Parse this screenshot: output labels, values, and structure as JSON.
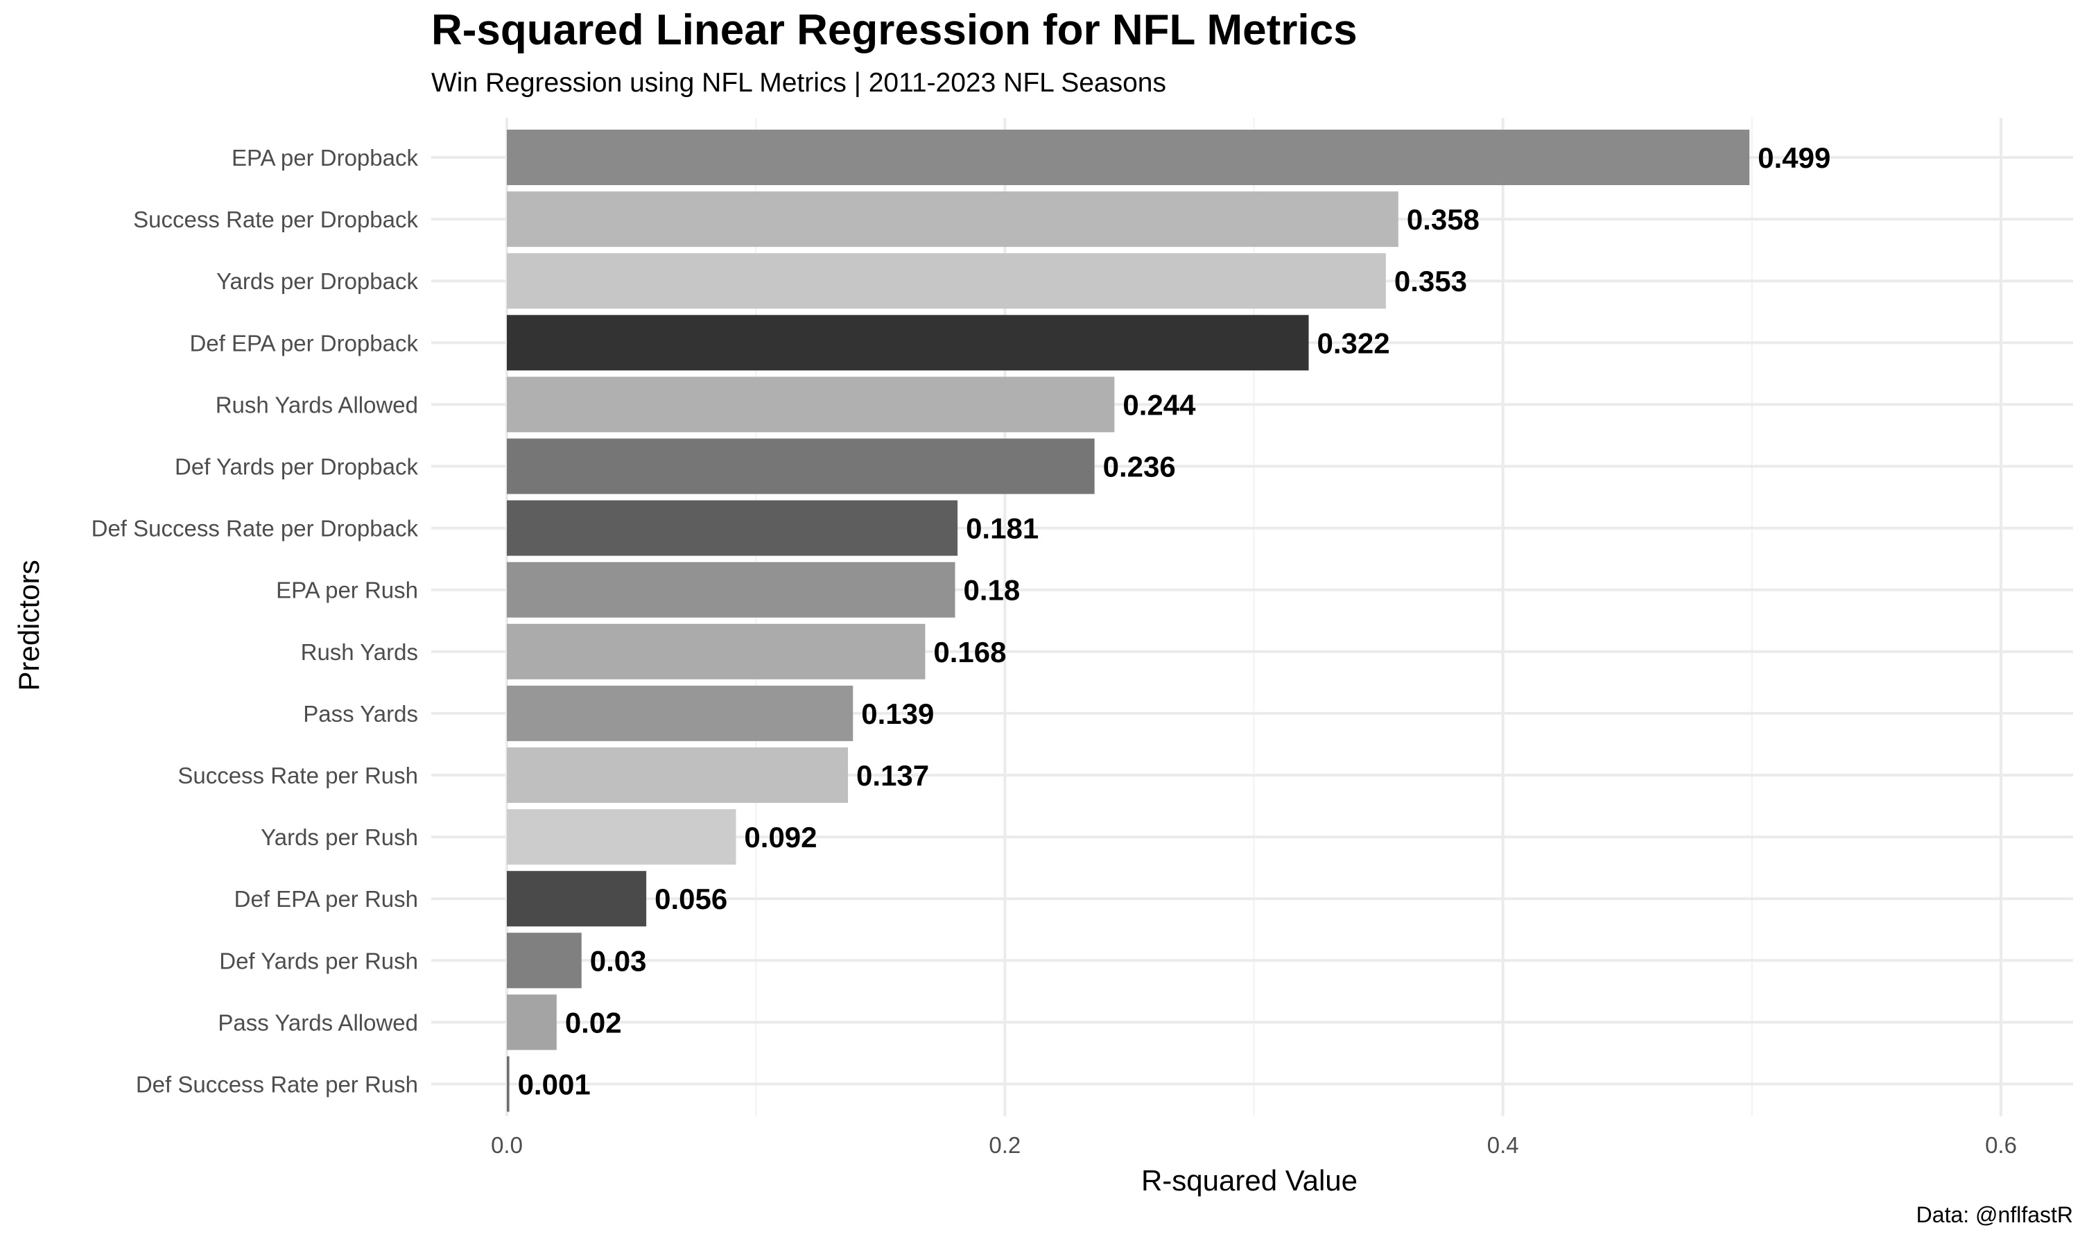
{
  "chart_data": {
    "type": "bar",
    "orientation": "horizontal",
    "title": "R-squared Linear Regression for NFL Metrics",
    "subtitle": "Win Regression using NFL Metrics | 2011-2023 NFL Seasons",
    "caption": "Data: @nflfastR",
    "xlabel": "R-squared Value",
    "ylabel": "Predictors",
    "xlim": [
      0,
      0.6
    ],
    "x_ticks": [
      "0.0",
      "0.2",
      "0.4",
      "0.6"
    ],
    "grid": true,
    "legend": "none",
    "categories": [
      "EPA per Dropback",
      "Success Rate per Dropback",
      "Yards per Dropback",
      "Def EPA per Dropback",
      "Rush Yards Allowed",
      "Def Yards per Dropback",
      "Def Success Rate per Dropback",
      "EPA per Rush",
      "Rush Yards",
      "Pass Yards",
      "Success Rate per Rush",
      "Yards per Rush",
      "Def EPA per Rush",
      "Def Yards per Rush",
      "Pass Yards Allowed",
      "Def Success Rate per Rush"
    ],
    "values": [
      0.499,
      0.358,
      0.353,
      0.322,
      0.244,
      0.236,
      0.181,
      0.18,
      0.168,
      0.139,
      0.137,
      0.092,
      0.056,
      0.03,
      0.02,
      0.001
    ],
    "value_labels": [
      "0.499",
      "0.358",
      "0.353",
      "0.322",
      "0.244",
      "0.236",
      "0.181",
      "0.18",
      "0.168",
      "0.139",
      "0.137",
      "0.092",
      "0.056",
      "0.03",
      "0.02",
      "0.001"
    ],
    "bar_colors": [
      "#8a8a8a",
      "#b8b8b8",
      "#c6c6c6",
      "#333333",
      "#b0b0b0",
      "#767676",
      "#5e5e5e",
      "#929292",
      "#ababab",
      "#979797",
      "#bfbfbf",
      "#cccccc",
      "#4a4a4a",
      "#808080",
      "#a4a4a4",
      "#6e6e6e"
    ]
  }
}
